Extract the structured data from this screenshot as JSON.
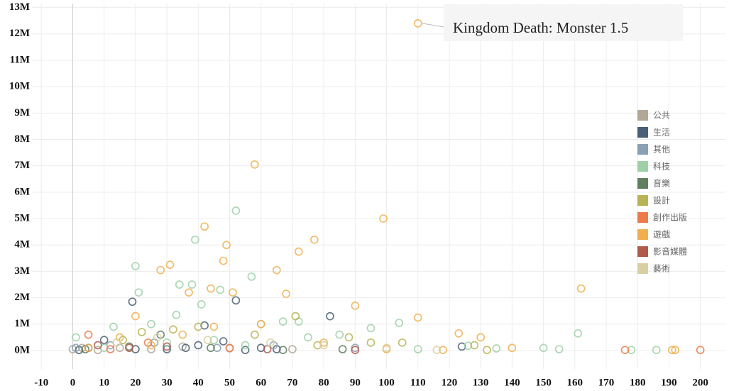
{
  "chart_data": {
    "type": "scatter",
    "annotation": "Kingdom Death: Monster 1.5",
    "xlim": [
      -13,
      208
    ],
    "xticks": [
      -10,
      0,
      10,
      20,
      30,
      40,
      50,
      60,
      70,
      80,
      90,
      100,
      110,
      120,
      130,
      140,
      150,
      160,
      170,
      180,
      190,
      200
    ],
    "ylim": [
      -700000,
      13150000
    ],
    "yticks": [
      {
        "value": 0,
        "label": "0M"
      },
      {
        "value": 1000000,
        "label": "1M"
      },
      {
        "value": 2000000,
        "label": "2M"
      },
      {
        "value": 3000000,
        "label": "3M"
      },
      {
        "value": 4000000,
        "label": "4M"
      },
      {
        "value": 5000000,
        "label": "5M"
      },
      {
        "value": 6000000,
        "label": "6M"
      },
      {
        "value": 7000000,
        "label": "7M"
      },
      {
        "value": 8000000,
        "label": "8M"
      },
      {
        "value": 9000000,
        "label": "9M"
      },
      {
        "value": 10000000,
        "label": "10M"
      },
      {
        "value": 11000000,
        "label": "11M"
      },
      {
        "value": 12000000,
        "label": "12M"
      },
      {
        "value": 13000000,
        "label": "13M"
      }
    ],
    "grid": true,
    "legend": "right",
    "series": [
      {
        "name": "公共",
        "color": "#b3a898",
        "x": [
          0,
          3,
          8,
          15,
          25,
          35,
          50,
          70
        ],
        "values": [
          50000,
          100000,
          20000,
          100000,
          50000,
          150000,
          80000,
          50000
        ]
      },
      {
        "name": "生活",
        "color": "#4a6076",
        "x": [
          52,
          19,
          82,
          42,
          48,
          10,
          5,
          30,
          40,
          60,
          65,
          124,
          2,
          20,
          55,
          36
        ],
        "values": [
          1900000,
          1850000,
          1300000,
          950000,
          350000,
          400000,
          100000,
          50000,
          200000,
          100000,
          50000,
          150000,
          20000,
          50000,
          20000,
          100000
        ]
      },
      {
        "name": "其他",
        "color": "#8aa0b4",
        "x": [
          1,
          12,
          26,
          46,
          64,
          90
        ],
        "values": [
          100000,
          200000,
          300000,
          100000,
          200000,
          100000
        ]
      },
      {
        "name": "科技",
        "color": "#9fd0a8",
        "x": [
          20,
          52,
          39,
          57,
          47,
          38,
          34,
          21,
          41,
          33,
          25,
          13,
          1,
          60,
          67,
          72,
          95,
          104,
          161,
          150,
          155,
          178,
          186,
          135,
          126,
          85,
          45,
          30,
          10,
          55,
          75,
          110
        ],
        "values": [
          3200000,
          5300000,
          4200000,
          2800000,
          2300000,
          2500000,
          2500000,
          2200000,
          1750000,
          1350000,
          1000000,
          900000,
          500000,
          1000000,
          1100000,
          1100000,
          850000,
          1050000,
          650000,
          100000,
          50000,
          20000,
          20000,
          80000,
          180000,
          600000,
          400000,
          300000,
          100000,
          200000,
          500000,
          50000
        ]
      },
      {
        "name": "音樂",
        "color": "#5f7f5f",
        "x": [
          4,
          18,
          28,
          44,
          67,
          86
        ],
        "values": [
          50000,
          150000,
          600000,
          100000,
          20000,
          50000
        ]
      },
      {
        "name": "設計",
        "color": "#b8b455",
        "x": [
          22,
          32,
          40,
          58,
          71,
          88,
          105,
          95,
          128,
          132,
          16,
          78
        ],
        "values": [
          700000,
          800000,
          900000,
          600000,
          1300000,
          500000,
          300000,
          300000,
          200000,
          20000,
          400000,
          200000
        ]
      },
      {
        "name": "創作出版",
        "color": "#ee7a4a",
        "x": [
          5,
          24,
          176,
          200,
          50,
          12
        ],
        "values": [
          600000,
          300000,
          20000,
          20000,
          100000,
          50000
        ]
      },
      {
        "name": "遊戲",
        "color": "#f0b050",
        "x": [
          110,
          58,
          99,
          42,
          49,
          77,
          65,
          31,
          28,
          48,
          162,
          68,
          44,
          51,
          37,
          90,
          110,
          123,
          140,
          192,
          130,
          20,
          60,
          35,
          15,
          80,
          25,
          5,
          100,
          45,
          118,
          191,
          72
        ],
        "values": [
          12400000,
          7050000,
          5000000,
          4700000,
          4000000,
          4200000,
          3050000,
          3250000,
          3050000,
          3400000,
          2350000,
          2150000,
          2350000,
          2200000,
          2200000,
          1700000,
          1250000,
          650000,
          100000,
          20000,
          500000,
          1300000,
          1000000,
          600000,
          500000,
          300000,
          200000,
          100000,
          50000,
          900000,
          20000,
          20000,
          3750000
        ]
      },
      {
        "name": "影音媒體",
        "color": "#b05a4a",
        "x": [
          8,
          18,
          30,
          62,
          90
        ],
        "values": [
          200000,
          100000,
          150000,
          50000,
          20000
        ]
      },
      {
        "name": "藝術",
        "color": "#d8d0a0",
        "x": [
          14,
          27,
          43,
          63,
          80,
          100,
          116
        ],
        "values": [
          300000,
          500000,
          400000,
          300000,
          200000,
          100000,
          20000
        ]
      }
    ]
  }
}
